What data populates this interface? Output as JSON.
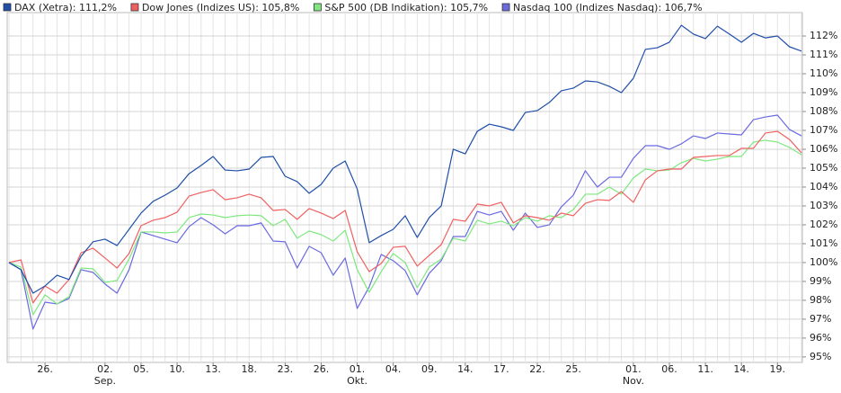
{
  "chart_data": {
    "type": "line",
    "legend": "top-left",
    "grid": true,
    "categories": [
      null,
      null,
      null,
      "26.",
      null,
      null,
      null,
      null,
      "02.",
      null,
      null,
      "05.",
      null,
      null,
      "10.",
      null,
      null,
      "13.",
      null,
      null,
      "18.",
      null,
      null,
      "23.",
      null,
      null,
      "26.",
      null,
      null,
      "01.",
      null,
      null,
      "04.",
      null,
      null,
      "09.",
      null,
      null,
      "14.",
      null,
      null,
      "17.",
      null,
      null,
      "22.",
      null,
      null,
      "25.",
      null,
      null,
      null,
      null,
      "01.",
      null,
      null,
      "06.",
      null,
      null,
      "11.",
      null,
      null,
      "14.",
      null,
      null,
      "19.",
      null,
      null
    ],
    "months": [
      null,
      null,
      null,
      null,
      null,
      null,
      null,
      null,
      "Sep.",
      null,
      null,
      null,
      null,
      null,
      null,
      null,
      null,
      null,
      null,
      null,
      null,
      null,
      null,
      null,
      null,
      null,
      null,
      null,
      null,
      "Okt.",
      null,
      null,
      null,
      null,
      null,
      null,
      null,
      null,
      null,
      null,
      null,
      null,
      null,
      null,
      null,
      null,
      null,
      null,
      null,
      null,
      null,
      null,
      "Nov.",
      null,
      null,
      null,
      null,
      null,
      null,
      null,
      null,
      null,
      null,
      null,
      null,
      null,
      null
    ],
    "ylim": [
      94.71,
      113.24
    ],
    "yticks": [
      {
        "value": 95,
        "label": "95%"
      },
      {
        "value": 96,
        "label": "96%"
      },
      {
        "value": 97,
        "label": "97%"
      },
      {
        "value": 98,
        "label": "98%"
      },
      {
        "value": 99,
        "label": "99%"
      },
      {
        "value": 100,
        "label": "100%"
      },
      {
        "value": 101,
        "label": "101%"
      },
      {
        "value": 102,
        "label": "102%"
      },
      {
        "value": 103,
        "label": "103%"
      },
      {
        "value": 104,
        "label": "104%"
      },
      {
        "value": 105,
        "label": "105%"
      },
      {
        "value": 106,
        "label": "106%"
      },
      {
        "value": 107,
        "label": "107%"
      },
      {
        "value": 108,
        "label": "108%"
      },
      {
        "value": 109,
        "label": "109%"
      },
      {
        "value": 110,
        "label": "110%"
      },
      {
        "value": 111,
        "label": "111%"
      },
      {
        "value": 112,
        "label": "112%"
      }
    ],
    "series": [
      {
        "name": "DAX (Xetra): 111,2%",
        "color": "#1f4fa8",
        "values": [
          100.0,
          99.62,
          98.38,
          98.76,
          99.33,
          99.1,
          100.33,
          101.1,
          101.24,
          100.9,
          101.76,
          102.62,
          103.24,
          103.57,
          103.95,
          104.71,
          105.14,
          105.62,
          104.9,
          104.86,
          104.95,
          105.57,
          105.62,
          104.57,
          104.29,
          103.67,
          104.14,
          105.0,
          105.38,
          103.9,
          101.05,
          101.43,
          101.76,
          102.48,
          101.33,
          102.38,
          103.0,
          106.0,
          105.76,
          106.95,
          107.33,
          107.19,
          107.0,
          107.95,
          108.05,
          108.48,
          109.1,
          109.24,
          109.62,
          109.57,
          109.33,
          109.0,
          109.76,
          111.29,
          111.38,
          111.67,
          112.57,
          112.1,
          111.86,
          112.52,
          112.1,
          111.67,
          112.14,
          111.9,
          112.0,
          111.43,
          111.2
        ]
      },
      {
        "name": "Dow Jones (Indizes US): 105,8%",
        "color": "#f06060",
        "values": [
          100.0,
          100.14,
          97.86,
          98.76,
          98.38,
          99.1,
          100.52,
          100.76,
          100.24,
          99.71,
          100.48,
          101.95,
          102.24,
          102.38,
          102.67,
          103.52,
          103.71,
          103.86,
          103.33,
          103.43,
          103.62,
          103.43,
          102.76,
          102.81,
          102.29,
          102.86,
          102.62,
          102.33,
          102.76,
          100.57,
          99.52,
          99.95,
          100.81,
          100.86,
          99.81,
          100.38,
          100.95,
          102.29,
          102.19,
          103.1,
          103.0,
          103.19,
          102.1,
          102.48,
          102.38,
          102.24,
          102.62,
          102.48,
          103.14,
          103.33,
          103.29,
          103.76,
          103.19,
          104.38,
          104.86,
          104.95,
          104.95,
          105.57,
          105.62,
          105.67,
          105.67,
          106.05,
          106.05,
          106.86,
          106.95,
          106.52,
          105.81
        ]
      },
      {
        "name": "S&P 500 (DB Indikation): 105,7%",
        "color": "#7ee87e",
        "values": [
          100.0,
          99.76,
          97.24,
          98.29,
          97.81,
          98.19,
          99.71,
          99.67,
          98.95,
          99.05,
          100.19,
          101.62,
          101.62,
          101.57,
          101.62,
          102.38,
          102.57,
          102.52,
          102.38,
          102.48,
          102.52,
          102.48,
          101.95,
          102.29,
          101.29,
          101.67,
          101.48,
          101.14,
          101.71,
          99.62,
          98.43,
          99.52,
          100.48,
          100.0,
          98.67,
          99.76,
          100.19,
          101.29,
          101.14,
          102.24,
          102.05,
          102.19,
          101.95,
          102.38,
          102.19,
          102.48,
          102.38,
          102.81,
          103.62,
          103.62,
          104.0,
          103.62,
          104.48,
          104.95,
          104.86,
          104.9,
          105.29,
          105.52,
          105.38,
          105.48,
          105.62,
          105.62,
          106.38,
          106.48,
          106.38,
          106.1,
          105.71
        ]
      },
      {
        "name": "Nasdaq 100 (Indizes Nasdaq): 106,7%",
        "color": "#6a6ae0",
        "values": [
          100.0,
          99.62,
          96.48,
          97.9,
          97.81,
          98.1,
          99.62,
          99.48,
          98.86,
          98.38,
          99.62,
          101.62,
          101.43,
          101.24,
          101.05,
          101.9,
          102.38,
          102.0,
          101.52,
          101.95,
          101.95,
          102.1,
          101.14,
          101.1,
          99.71,
          100.86,
          100.52,
          99.33,
          100.24,
          97.57,
          98.71,
          100.43,
          100.1,
          99.57,
          98.29,
          99.43,
          100.1,
          101.38,
          101.38,
          102.71,
          102.52,
          102.71,
          101.71,
          102.62,
          101.86,
          102.0,
          102.95,
          103.57,
          104.86,
          104.0,
          104.52,
          104.52,
          105.52,
          106.19,
          106.19,
          106.0,
          106.29,
          106.71,
          106.57,
          106.86,
          106.81,
          106.76,
          107.57,
          107.71,
          107.81,
          107.05,
          106.71
        ]
      }
    ]
  }
}
